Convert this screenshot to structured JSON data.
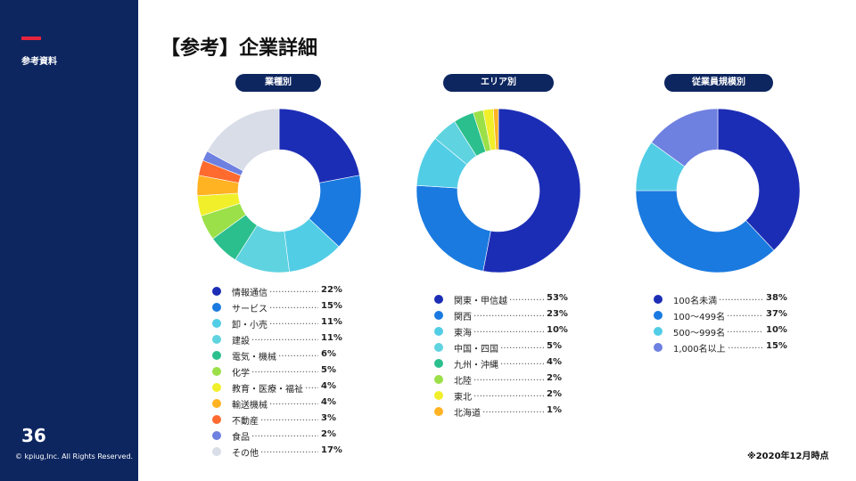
{
  "sidebar": {
    "section_label": "参考資料",
    "page_number": "36",
    "copyright": "© kpiug,Inc. All Rights Reserved.",
    "accent_color": "#e8233d",
    "bg_color": "#0d2660"
  },
  "title": "【参考】企業詳細",
  "note": "※2020年12月時点",
  "leader_dots": "…………………",
  "chart_data": [
    {
      "type": "pie",
      "title": "業種別",
      "labels": [
        "情報通信",
        "サービス",
        "卸・小売",
        "建設",
        "電気・機械",
        "化学",
        "教育・医療・福祉",
        "輸送機械",
        "不動産",
        "食品",
        "その他"
      ],
      "values": [
        22,
        15,
        11,
        11,
        6,
        5,
        4,
        4,
        3,
        2,
        17
      ],
      "value_labels": [
        "22%",
        "15%",
        "11%",
        "11%",
        "6%",
        "5%",
        "4%",
        "4%",
        "3%",
        "2%",
        "17%"
      ],
      "colors": [
        "#1c2db5",
        "#1a7ae0",
        "#52cde6",
        "#5fd3e0",
        "#2bbf8e",
        "#9be048",
        "#f1ef2a",
        "#ffb222",
        "#ff6a2f",
        "#6e80e0",
        "#d8dde8"
      ]
    },
    {
      "type": "pie",
      "title": "エリア別",
      "labels": [
        "関東・甲信越",
        "関西",
        "東海",
        "中国・四国",
        "九州・沖縄",
        "北陸",
        "東北",
        "北海道"
      ],
      "values": [
        53,
        23,
        10,
        5,
        4,
        2,
        2,
        1
      ],
      "value_labels": [
        "53%",
        "23%",
        "10%",
        "5%",
        "4%",
        "2%",
        "2%",
        "1%"
      ],
      "colors": [
        "#1c2db5",
        "#1a7ae0",
        "#52cde6",
        "#5fd3e0",
        "#2bbf8e",
        "#9be048",
        "#f1ef2a",
        "#ffb222"
      ]
    },
    {
      "type": "pie",
      "title": "従業員規模別",
      "labels": [
        "100名未満",
        "100〜499名",
        "500〜999名",
        "1,000名以上"
      ],
      "values": [
        38,
        37,
        10,
        15
      ],
      "value_labels": [
        "38%",
        "37%",
        "10%",
        "15%"
      ],
      "colors": [
        "#1c2db5",
        "#1a7ae0",
        "#52cde6",
        "#6e80e0"
      ]
    }
  ]
}
